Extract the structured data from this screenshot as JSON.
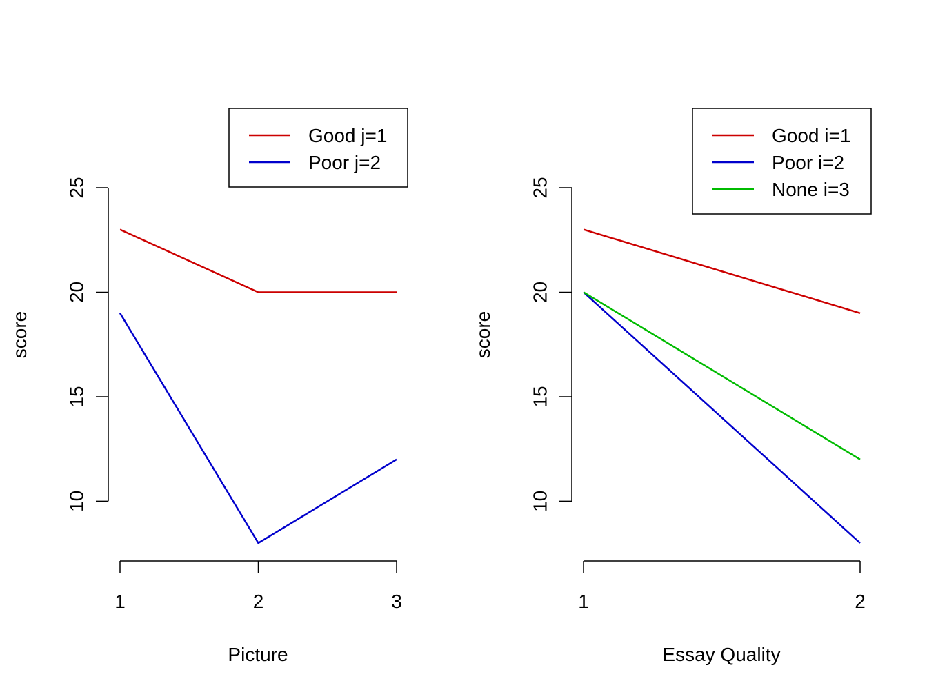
{
  "chart_data": [
    {
      "type": "line",
      "xlabel": "Picture",
      "ylabel": "score",
      "x": [
        1,
        2,
        3
      ],
      "x_tick_labels": [
        "1",
        "2",
        "3"
      ],
      "xlim": [
        1,
        3
      ],
      "ylim": [
        8,
        25
      ],
      "y_ticks": [
        10,
        15,
        20,
        25
      ],
      "y_tick_labels": [
        "10",
        "15",
        "20",
        "25"
      ],
      "grid": false,
      "legend_position": "top-right",
      "series": [
        {
          "name": "Good j=1",
          "color": "#cc0000",
          "values": [
            23,
            20,
            20
          ]
        },
        {
          "name": "Poor j=2",
          "color": "#0000cc",
          "values": [
            19,
            8,
            12
          ]
        }
      ]
    },
    {
      "type": "line",
      "xlabel": "Essay Quality",
      "ylabel": "score",
      "x": [
        1,
        2
      ],
      "x_tick_labels": [
        "1",
        "2"
      ],
      "xlim": [
        1,
        2
      ],
      "ylim": [
        8,
        25
      ],
      "y_ticks": [
        10,
        15,
        20,
        25
      ],
      "y_tick_labels": [
        "10",
        "15",
        "20",
        "25"
      ],
      "grid": false,
      "legend_position": "top-right",
      "series": [
        {
          "name": "Good i=1",
          "color": "#cc0000",
          "values": [
            23,
            19
          ]
        },
        {
          "name": "Poor i=2",
          "color": "#0000cc",
          "values": [
            20,
            8
          ]
        },
        {
          "name": "None i=3",
          "color": "#00bb00",
          "values": [
            20,
            12
          ]
        }
      ]
    }
  ]
}
